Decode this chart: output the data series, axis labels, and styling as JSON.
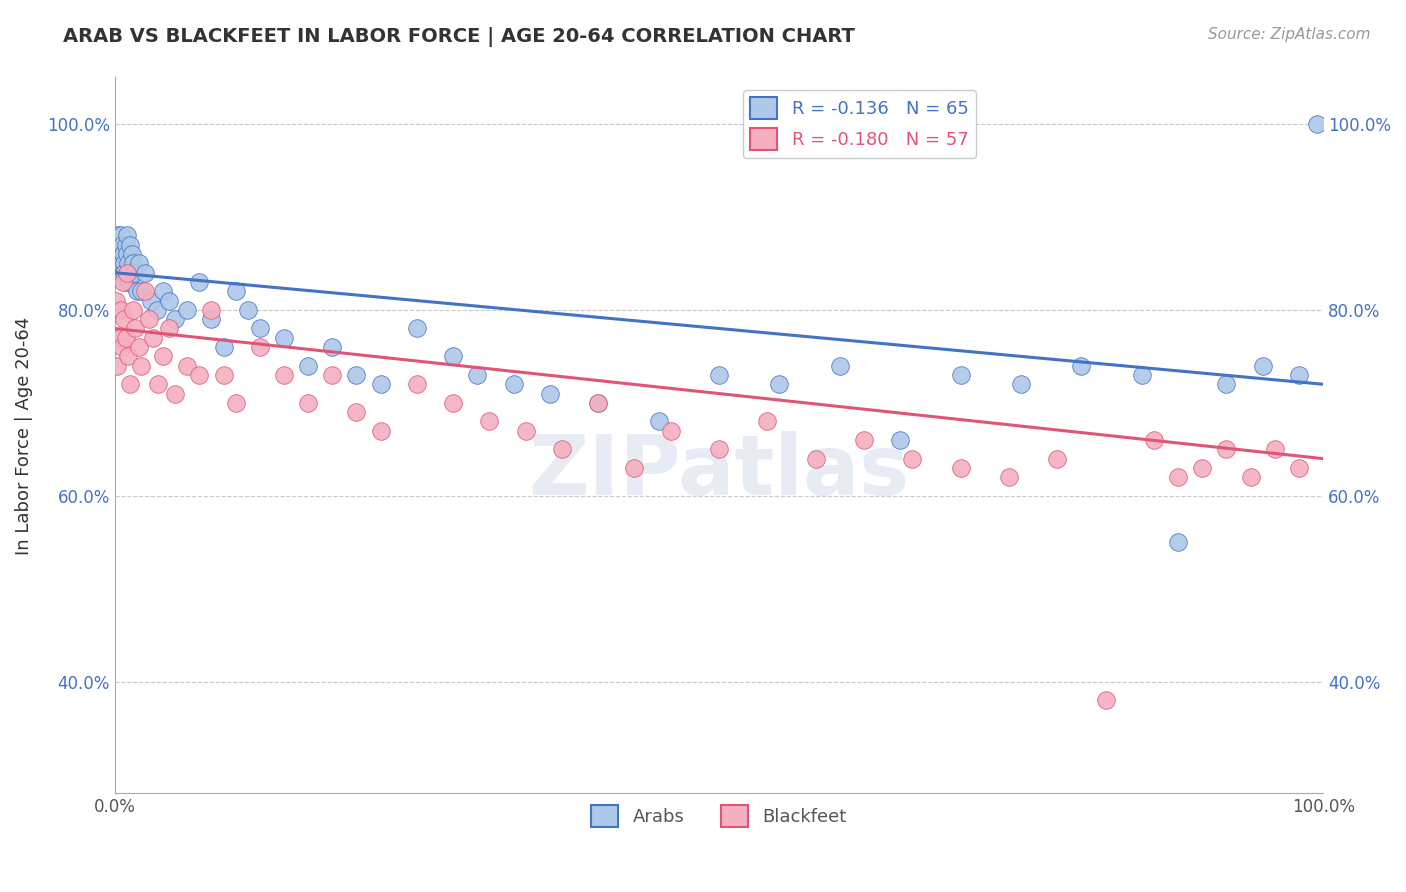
{
  "title": "ARAB VS BLACKFEET IN LABOR FORCE | AGE 20-64 CORRELATION CHART",
  "source_text": "Source: ZipAtlas.com",
  "ylabel": "In Labor Force | Age 20-64",
  "xlim": [
    0.0,
    1.0
  ],
  "ylim": [
    0.28,
    1.05
  ],
  "yticks": [
    0.4,
    0.6,
    0.8,
    1.0
  ],
  "yticklabels": [
    "40.0%",
    "60.0%",
    "80.0%",
    "100.0%"
  ],
  "arab_color": "#adc8e8",
  "blackfeet_color": "#f4afc0",
  "arab_line_color": "#4472c4",
  "blackfeet_line_color": "#e05575",
  "arab_R": -0.136,
  "arab_N": 65,
  "blackfeet_R": -0.18,
  "blackfeet_N": 57,
  "watermark": "ZIPatlas",
  "grid_color": "#c8c8c8",
  "background_color": "#ffffff",
  "arab_x": [
    0.001,
    0.002,
    0.003,
    0.003,
    0.004,
    0.004,
    0.005,
    0.005,
    0.006,
    0.006,
    0.007,
    0.008,
    0.008,
    0.009,
    0.009,
    0.01,
    0.01,
    0.011,
    0.011,
    0.012,
    0.013,
    0.014,
    0.015,
    0.016,
    0.018,
    0.02,
    0.022,
    0.025,
    0.03,
    0.035,
    0.04,
    0.045,
    0.05,
    0.06,
    0.07,
    0.08,
    0.09,
    0.1,
    0.11,
    0.12,
    0.14,
    0.16,
    0.18,
    0.2,
    0.22,
    0.25,
    0.28,
    0.3,
    0.33,
    0.36,
    0.4,
    0.45,
    0.5,
    0.55,
    0.6,
    0.65,
    0.7,
    0.75,
    0.8,
    0.85,
    0.88,
    0.92,
    0.95,
    0.98,
    0.995
  ],
  "arab_y": [
    0.87,
    0.86,
    0.88,
    0.84,
    0.87,
    0.85,
    0.86,
    0.88,
    0.85,
    0.87,
    0.86,
    0.85,
    0.84,
    0.87,
    0.83,
    0.86,
    0.88,
    0.85,
    0.84,
    0.83,
    0.87,
    0.86,
    0.85,
    0.84,
    0.82,
    0.85,
    0.82,
    0.84,
    0.81,
    0.8,
    0.82,
    0.81,
    0.79,
    0.8,
    0.83,
    0.79,
    0.76,
    0.82,
    0.8,
    0.78,
    0.77,
    0.74,
    0.76,
    0.73,
    0.72,
    0.78,
    0.75,
    0.73,
    0.72,
    0.71,
    0.7,
    0.68,
    0.73,
    0.72,
    0.74,
    0.66,
    0.73,
    0.72,
    0.74,
    0.73,
    0.55,
    0.72,
    0.74,
    0.73,
    1.0
  ],
  "blackfeet_x": [
    0.001,
    0.002,
    0.004,
    0.005,
    0.006,
    0.007,
    0.008,
    0.009,
    0.01,
    0.011,
    0.013,
    0.015,
    0.017,
    0.02,
    0.022,
    0.025,
    0.028,
    0.032,
    0.036,
    0.04,
    0.045,
    0.05,
    0.06,
    0.07,
    0.08,
    0.09,
    0.1,
    0.12,
    0.14,
    0.16,
    0.18,
    0.2,
    0.22,
    0.25,
    0.28,
    0.31,
    0.34,
    0.37,
    0.4,
    0.43,
    0.46,
    0.5,
    0.54,
    0.58,
    0.62,
    0.66,
    0.7,
    0.74,
    0.78,
    0.82,
    0.86,
    0.88,
    0.9,
    0.92,
    0.94,
    0.96,
    0.98
  ],
  "blackfeet_y": [
    0.81,
    0.74,
    0.77,
    0.8,
    0.76,
    0.83,
    0.79,
    0.77,
    0.84,
    0.75,
    0.72,
    0.8,
    0.78,
    0.76,
    0.74,
    0.82,
    0.79,
    0.77,
    0.72,
    0.75,
    0.78,
    0.71,
    0.74,
    0.73,
    0.8,
    0.73,
    0.7,
    0.76,
    0.73,
    0.7,
    0.73,
    0.69,
    0.67,
    0.72,
    0.7,
    0.68,
    0.67,
    0.65,
    0.7,
    0.63,
    0.67,
    0.65,
    0.68,
    0.64,
    0.66,
    0.64,
    0.63,
    0.62,
    0.64,
    0.38,
    0.66,
    0.62,
    0.63,
    0.65,
    0.62,
    0.65,
    0.63
  ],
  "arab_line_x0": 0.0,
  "arab_line_y0": 0.84,
  "arab_line_x1": 1.0,
  "arab_line_y1": 0.72,
  "blackfeet_line_x0": 0.0,
  "blackfeet_line_y0": 0.78,
  "blackfeet_line_x1": 1.0,
  "blackfeet_line_y1": 0.64
}
